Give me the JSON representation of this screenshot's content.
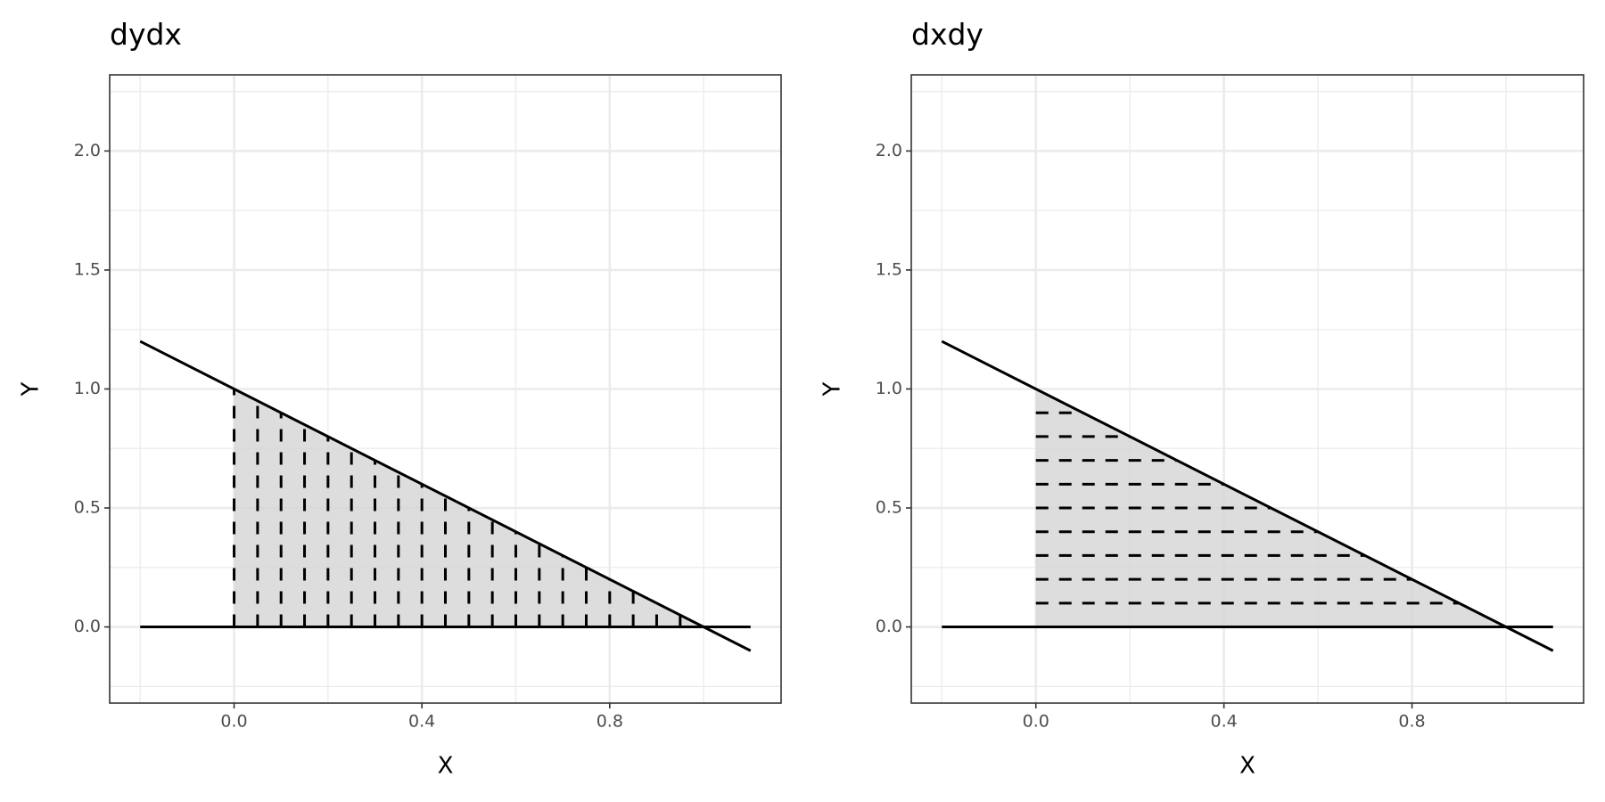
{
  "chart_data": [
    {
      "type": "line",
      "title": "dydx",
      "x_label": "X",
      "y_label": "Y",
      "xlim": [
        -0.265,
        1.165
      ],
      "ylim": [
        -0.32,
        2.32
      ],
      "xticks": [
        {
          "value": 0,
          "label": "0.0"
        },
        {
          "value": 0.4,
          "label": "0.4"
        },
        {
          "value": 0.8,
          "label": "0.8"
        }
      ],
      "yticks": [
        {
          "value": 0,
          "label": "0.0"
        },
        {
          "value": 0.5,
          "label": "0.5"
        },
        {
          "value": 1,
          "label": "1.0"
        },
        {
          "value": 1.5,
          "label": "1.5"
        },
        {
          "value": 2,
          "label": "2.0"
        }
      ],
      "xminor": [
        -0.2,
        0.2,
        0.6,
        1.0
      ],
      "yminor": [
        -0.25,
        0.25,
        0.75,
        1.25,
        1.75,
        2.25
      ],
      "grid": true,
      "color": "#000000",
      "fill": "#d4d4d4",
      "lines": [
        {
          "x": [
            -0.2,
            1.1
          ],
          "y": [
            1.2,
            -0.1
          ]
        },
        {
          "x": [
            -0.2,
            1.1
          ],
          "y": [
            0,
            0
          ]
        }
      ],
      "area": {
        "x": [
          0,
          0,
          1
        ],
        "y": [
          0,
          1,
          0
        ]
      },
      "segments": {
        "x": [
          0,
          0.05,
          0.1,
          0.15,
          0.2,
          0.25,
          0.3,
          0.35,
          0.4,
          0.45,
          0.5,
          0.55,
          0.6,
          0.65,
          0.7,
          0.75,
          0.8,
          0.85,
          0.9,
          0.95
        ],
        "xend": [
          0,
          0.05,
          0.1,
          0.15,
          0.2,
          0.25,
          0.3,
          0.35,
          0.4,
          0.45,
          0.5,
          0.55,
          0.6,
          0.65,
          0.7,
          0.75,
          0.8,
          0.85,
          0.9,
          0.95
        ],
        "y": [
          0,
          0,
          0,
          0,
          0,
          0,
          0,
          0,
          0,
          0,
          0,
          0,
          0,
          0,
          0,
          0,
          0,
          0,
          0,
          0
        ],
        "yend": [
          1,
          0.95,
          0.9,
          0.85,
          0.8,
          0.75,
          0.7,
          0.65,
          0.6,
          0.55,
          0.5,
          0.45,
          0.4,
          0.35,
          0.3,
          0.25,
          0.2,
          0.15,
          0.1,
          0.05
        ]
      }
    },
    {
      "type": "line",
      "title": "dxdy",
      "x_label": "X",
      "y_label": "Y",
      "xlim": [
        -0.265,
        1.165
      ],
      "ylim": [
        -0.32,
        2.32
      ],
      "xticks": [
        {
          "value": 0,
          "label": "0.0"
        },
        {
          "value": 0.4,
          "label": "0.4"
        },
        {
          "value": 0.8,
          "label": "0.8"
        }
      ],
      "yticks": [
        {
          "value": 0,
          "label": "0.0"
        },
        {
          "value": 0.5,
          "label": "0.5"
        },
        {
          "value": 1,
          "label": "1.0"
        },
        {
          "value": 1.5,
          "label": "1.5"
        },
        {
          "value": 2,
          "label": "2.0"
        }
      ],
      "xminor": [
        -0.2,
        0.2,
        0.6,
        1.0
      ],
      "yminor": [
        -0.25,
        0.25,
        0.75,
        1.25,
        1.75,
        2.25
      ],
      "grid": true,
      "color": "#000000",
      "fill": "#d4d4d4",
      "lines": [
        {
          "x": [
            -0.2,
            1.1
          ],
          "y": [
            1.2,
            -0.1
          ]
        },
        {
          "x": [
            -0.2,
            1.1
          ],
          "y": [
            0,
            0
          ]
        }
      ],
      "area": {
        "x": [
          0,
          0,
          1
        ],
        "y": [
          0,
          1,
          0
        ]
      },
      "segments": {
        "x": [
          0,
          0,
          0,
          0,
          0,
          0,
          0,
          0,
          0,
          0
        ],
        "xend": [
          1,
          0.9,
          0.8,
          0.7,
          0.6,
          0.5,
          0.4,
          0.3,
          0.2,
          0.1
        ],
        "y": [
          0,
          0.1,
          0.2,
          0.3,
          0.4,
          0.5,
          0.6,
          0.7,
          0.8,
          0.9
        ],
        "yend": [
          0,
          0.1,
          0.2,
          0.3,
          0.4,
          0.5,
          0.6,
          0.7,
          0.8,
          0.9
        ]
      }
    }
  ]
}
